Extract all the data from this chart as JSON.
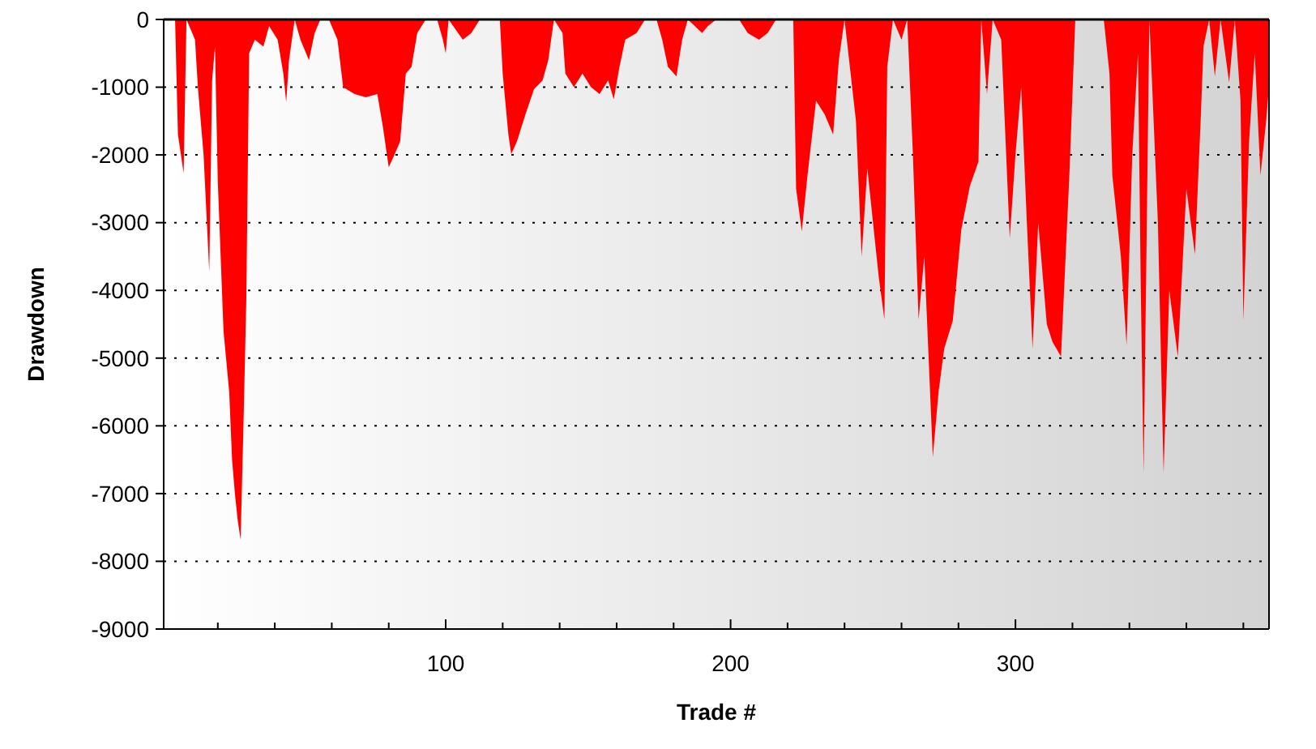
{
  "chart_data": {
    "type": "area",
    "xlabel": "Trade #",
    "ylabel": "Drawdown",
    "xlim": [
      1,
      389
    ],
    "ylim": [
      -9000,
      0
    ],
    "xticks": [
      {
        "value": 20,
        "label": null
      },
      {
        "value": 40,
        "label": null
      },
      {
        "value": 60,
        "label": null
      },
      {
        "value": 80,
        "label": null
      },
      100,
      {
        "value": 120,
        "label": null
      },
      {
        "value": 140,
        "label": null
      },
      {
        "value": 160,
        "label": null
      },
      {
        "value": 180,
        "label": null
      },
      200,
      {
        "value": 220,
        "label": null
      },
      {
        "value": 240,
        "label": null
      },
      {
        "value": 260,
        "label": null
      },
      {
        "value": 280,
        "label": null
      },
      300,
      {
        "value": 320,
        "label": null
      },
      {
        "value": 340,
        "label": null
      },
      {
        "value": 360,
        "label": null
      },
      {
        "value": 380,
        "label": null
      }
    ],
    "yticks": [
      0,
      -1000,
      -2000,
      -3000,
      -4000,
      -5000,
      -6000,
      -7000,
      -8000,
      -9000
    ],
    "grid": "y",
    "series": [
      {
        "color": "#ff0000",
        "x": [
          1,
          5,
          6,
          8,
          9,
          12,
          13,
          15,
          17,
          18,
          19,
          20,
          22,
          24,
          25,
          26,
          27,
          28,
          29,
          30,
          31,
          33,
          36,
          38,
          41,
          43,
          44,
          45,
          47,
          49,
          52,
          54,
          56,
          59,
          62,
          64,
          68,
          72,
          76,
          78,
          80,
          82,
          84,
          86,
          88,
          90,
          93,
          97,
          99,
          100,
          101,
          106,
          109,
          112,
          119,
          120,
          122,
          123,
          125,
          128,
          131,
          134,
          136,
          138,
          141,
          142,
          145,
          148,
          151,
          154,
          157,
          159,
          161,
          163,
          167,
          170,
          174,
          176,
          178,
          181,
          183,
          185,
          190,
          192,
          195,
          203,
          206,
          210,
          213,
          216,
          222,
          223,
          225,
          227,
          230,
          233,
          236,
          238,
          240,
          244,
          246,
          248,
          250,
          252,
          254,
          255,
          257,
          260,
          262,
          264,
          266,
          268,
          271,
          273,
          275,
          278,
          281,
          284,
          287,
          288,
          290,
          292,
          295,
          298,
          300,
          302,
          304,
          306,
          308,
          311,
          313,
          316,
          319,
          321,
          331,
          333,
          334,
          337,
          339,
          341,
          343,
          344,
          345,
          347,
          350,
          352,
          354,
          357,
          360,
          363,
          365,
          366,
          368,
          370,
          372,
          375,
          377,
          379,
          380,
          382,
          384,
          386,
          388,
          389
        ],
        "values": [
          0,
          0,
          -1700,
          -2270,
          0,
          -300,
          -1000,
          -2000,
          -3730,
          -900,
          -400,
          -2400,
          -4600,
          -5500,
          -6500,
          -7000,
          -7400,
          -7680,
          -6000,
          -4140,
          -500,
          -300,
          -400,
          -100,
          -300,
          -800,
          -1220,
          -600,
          0,
          -300,
          -600,
          -200,
          0,
          0,
          -300,
          -1000,
          -1100,
          -1150,
          -1100,
          -1600,
          -2180,
          -2000,
          -1800,
          -800,
          -700,
          -200,
          0,
          0,
          -300,
          -500,
          0,
          -300,
          -200,
          0,
          0,
          -800,
          -1700,
          -1990,
          -1800,
          -1400,
          -1030,
          -900,
          -600,
          0,
          -200,
          -800,
          -1000,
          -800,
          -1000,
          -1100,
          -900,
          -1180,
          -700,
          -300,
          -200,
          0,
          0,
          -300,
          -700,
          -840,
          -300,
          0,
          -200,
          -100,
          0,
          0,
          -200,
          -300,
          -200,
          0,
          0,
          -2500,
          -3130,
          -2300,
          -1200,
          -1400,
          -1700,
          -600,
          0,
          -1500,
          -3500,
          -2200,
          -3000,
          -3800,
          -4430,
          -700,
          0,
          -300,
          0,
          -2000,
          -4430,
          -3500,
          -6460,
          -5500,
          -4860,
          -4450,
          -3100,
          -2460,
          -2100,
          0,
          -1100,
          0,
          -300,
          -3230,
          -2000,
          -1000,
          -3000,
          -4860,
          -3000,
          -4500,
          -4760,
          -4980,
          -2220,
          0,
          0,
          -800,
          -2300,
          -3500,
          -4810,
          -2000,
          -500,
          -4000,
          -6700,
          0,
          -3000,
          -6700,
          -4000,
          -4980,
          -2500,
          -3470,
          -1500,
          -400,
          0,
          -840,
          0,
          -930,
          0,
          -1200,
          -4450,
          -1800,
          -500,
          -2300,
          -1500,
          -1000
        ]
      }
    ]
  }
}
